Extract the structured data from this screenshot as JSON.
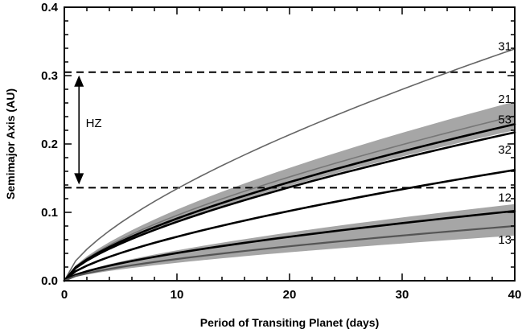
{
  "chart_data": {
    "type": "line",
    "title": "",
    "xlabel": "Period of Transiting Planet (days)",
    "ylabel": "Semimajor Axis (AU)",
    "xlim": [
      0,
      40
    ],
    "ylim": [
      0,
      0.4
    ],
    "xticks": [
      0,
      10,
      20,
      30,
      40
    ],
    "xtick_labels": [
      "0",
      "10",
      "20",
      "30",
      "40"
    ],
    "yticks": [
      0.0,
      0.1,
      0.2,
      0.3,
      0.4
    ],
    "ytick_labels": [
      "0.0",
      "0.1",
      "0.2",
      "0.3",
      "0.4"
    ],
    "x_sample": [
      0,
      1,
      2,
      3,
      4,
      5,
      6,
      7,
      8,
      9,
      10,
      11,
      12,
      13,
      14,
      15,
      16,
      17,
      18,
      19,
      20,
      21,
      22,
      23,
      24,
      25,
      26,
      27,
      28,
      29,
      30,
      31,
      32,
      33,
      34,
      35,
      36,
      37,
      38,
      39,
      40
    ],
    "series": [
      {
        "name": "31",
        "label": "31",
        "a_at_40_days": 0.339,
        "color": "#666666",
        "width": 1.6,
        "label_y": 0.343
      },
      {
        "name": "21",
        "label": "21",
        "a_at_40_days": 0.241,
        "color": "#777777",
        "width": 1.6,
        "band": [
          0.22,
          0.262
        ],
        "label_y": 0.266
      },
      {
        "name": "53",
        "label": "53",
        "a_at_40_days": 0.229,
        "color": "#000000",
        "width": 2.6,
        "label_y": 0.236
      },
      {
        "name": "32",
        "label": "32",
        "a_at_40_days": 0.217,
        "color": "#000000",
        "width": 2.6,
        "label_y": 0.192
      },
      {
        "name": "12",
        "label": "12",
        "a_at_40_days": 0.162,
        "color": "#000000",
        "width": 2.6,
        "label_y": 0.122
      },
      {
        "name": "13a",
        "label": "",
        "a_at_40_days": 0.102,
        "color": "#000000",
        "width": 2.6,
        "band": [
          0.092,
          0.112
        ]
      },
      {
        "name": "13",
        "label": "13",
        "a_at_40_days": 0.08,
        "color": "#555555",
        "width": 2.2,
        "band": [
          0.066,
          0.094
        ],
        "label_y": 0.06
      }
    ],
    "habitable_zone": {
      "label": "HZ",
      "lower": 0.136,
      "upper": 0.305
    }
  }
}
